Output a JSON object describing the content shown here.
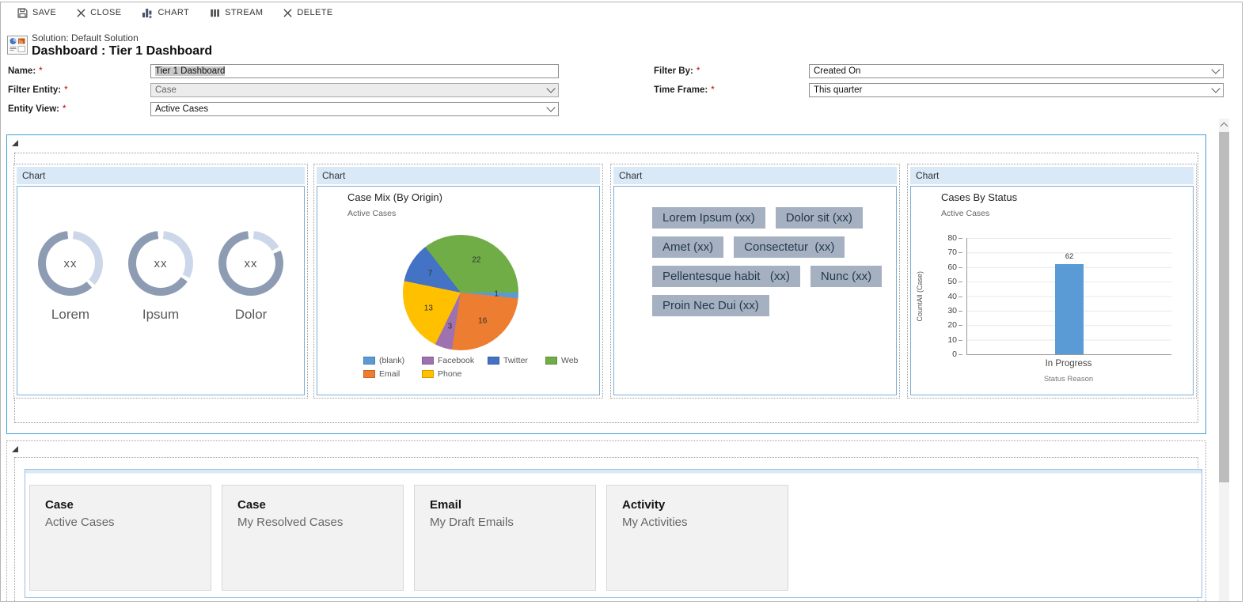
{
  "toolbar": {
    "items": [
      {
        "label": "SAVE"
      },
      {
        "label": "CLOSE"
      },
      {
        "label": "CHART"
      },
      {
        "label": "STREAM"
      },
      {
        "label": "DELETE"
      }
    ]
  },
  "header": {
    "solution": "Solution: Default Solution",
    "title": "Dashboard : Tier 1 Dashboard"
  },
  "form": {
    "required_mark": "*",
    "name": {
      "label": "Name:",
      "value": "Tier 1 Dashboard"
    },
    "filter_entity": {
      "label": "Filter Entity:",
      "value": "Case"
    },
    "entity_view": {
      "label": "Entity View:",
      "value": "Active Cases"
    },
    "filter_by": {
      "label": "Filter By:",
      "value": "Created On"
    },
    "time_frame": {
      "label": "Time Frame:",
      "value": "This quarter"
    }
  },
  "chart_data": [
    {
      "type": "donut",
      "panel": "Chart",
      "colors": {
        "filled": "#8e9cb3",
        "remainder": "#ccd8e9"
      },
      "series": [
        {
          "label": "Lorem",
          "center_text": "xx",
          "filled_pct": 60
        },
        {
          "label": "Ipsum",
          "center_text": "xx",
          "filled_pct": 64
        },
        {
          "label": "Dolor",
          "center_text": "xx",
          "filled_pct": 80
        }
      ]
    },
    {
      "type": "pie",
      "panel": "Chart",
      "title": "Case Mix (By Origin)",
      "subtitle": "Active Cases",
      "total": 62,
      "start_angle_deg": 90,
      "slices": [
        {
          "label": "(blank)",
          "value": 1,
          "color": "#5b9bd5"
        },
        {
          "label": "Email",
          "value": 16,
          "color": "#ed7d31"
        },
        {
          "label": "Facebook",
          "value": 3,
          "color": "#9e72b0"
        },
        {
          "label": "Phone",
          "value": 13,
          "color": "#ffc000"
        },
        {
          "label": "Twitter",
          "value": 7,
          "color": "#4472c4"
        },
        {
          "label": "Web",
          "value": 22,
          "color": "#70ad47"
        }
      ],
      "legend": [
        {
          "label": "(blank)",
          "color": "#5b9bd5"
        },
        {
          "label": "Facebook",
          "color": "#9e72b0"
        },
        {
          "label": "Twitter",
          "color": "#4472c4"
        },
        {
          "label": "Web",
          "color": "#70ad47"
        },
        {
          "label": "Email",
          "color": "#ed7d31"
        },
        {
          "label": "Phone",
          "color": "#ffc000"
        }
      ]
    },
    {
      "type": "tag-cloud",
      "panel": "Chart",
      "tag_color": "#a5b1c0",
      "text_color": "#24384e",
      "tags": [
        "Lorem Ipsum (xx)",
        "Dolor sit (xx)",
        "Amet (xx)",
        "Consectetur  (xx)",
        "Pellentesque habit   (xx)",
        "Nunc (xx)",
        "Proin Nec Dui (xx)"
      ]
    },
    {
      "type": "bar",
      "panel": "Chart",
      "title": "Cases By Status",
      "subtitle": "Active Cases",
      "categories": [
        "In Progress"
      ],
      "values": [
        62
      ],
      "bar_color": "#5b9bd5",
      "ylabel": "CountAll (Case)",
      "xlabel": "Status Reason",
      "ylim": [
        0,
        80
      ],
      "yticks": [
        "80",
        "70",
        "60",
        "50",
        "40",
        "30",
        "20",
        "10",
        "0"
      ]
    }
  ],
  "lists": {
    "cards": [
      {
        "entity": "Case",
        "view": "Active Cases"
      },
      {
        "entity": "Case",
        "view": "My Resolved Cases"
      },
      {
        "entity": "Email",
        "view": "My Draft Emails"
      },
      {
        "entity": "Activity",
        "view": "My Activities"
      }
    ]
  }
}
